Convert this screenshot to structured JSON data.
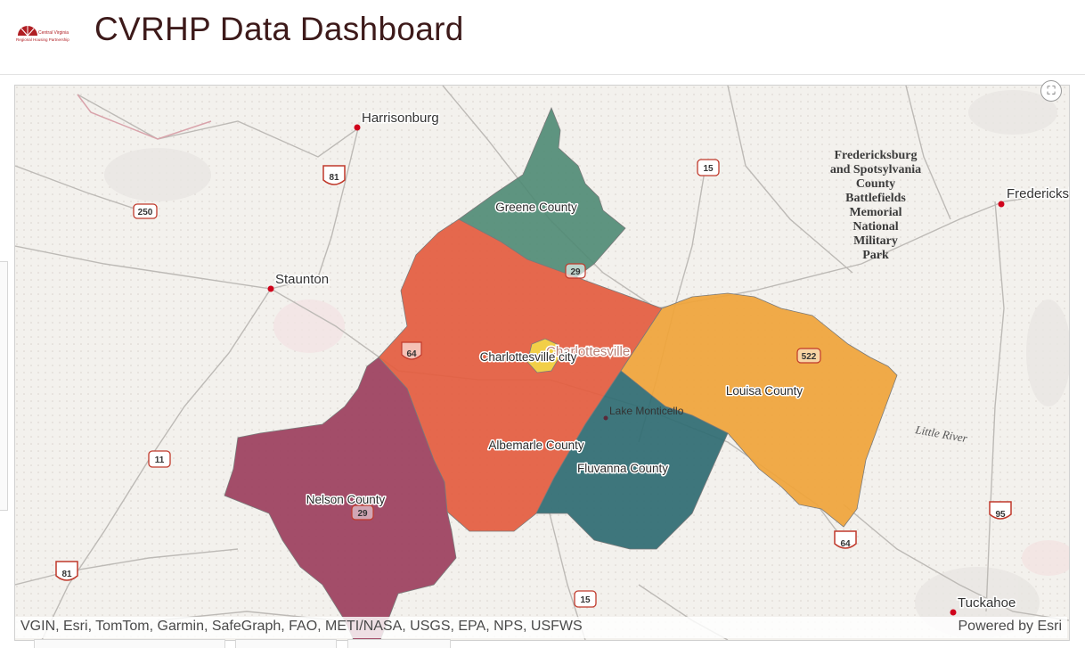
{
  "header": {
    "title": "CVRHP Data Dashboard",
    "logo_line1": "Central Virginia",
    "logo_line2": "Regional Housing Partnership"
  },
  "map": {
    "counties": [
      {
        "name": "Greene County",
        "color": "#4e8a73"
      },
      {
        "name": "Albemarle County",
        "color": "#e45c3f"
      },
      {
        "name": "Charlottesville city",
        "color": "#f2cf48"
      },
      {
        "name": "Louisa County",
        "color": "#f0a43a"
      },
      {
        "name": "Fluvanna County",
        "color": "#2f6b72"
      },
      {
        "name": "Nelson County",
        "color": "#9c3f5d"
      }
    ],
    "places": {
      "harrisonburg": "Harrisonburg",
      "staunton": "Staunton",
      "fredericksburg": "Fredericksbu",
      "tuckahoe": "Tuckahoe",
      "charlottesville": "Charlottesville",
      "lake_monticello": "Lake Monticello"
    },
    "park_lines": [
      "Fredericksburg",
      "and Spotsylvania",
      "County",
      "Battlefields",
      "Memorial",
      "National",
      "Military",
      "Park"
    ],
    "river": "Little River",
    "shields": {
      "i81_north": "81",
      "us250": "250",
      "us15_north": "15",
      "us29_north": "29",
      "i64_west": "64",
      "us522": "522",
      "us11": "11",
      "us29_south": "29",
      "i81_south": "81",
      "us15_south": "15",
      "i64_east": "64",
      "i95": "95"
    },
    "expand_icon": "expand-icon"
  },
  "attribution": {
    "sources": "VGIN, Esri, TomTom, Garmin, SafeGraph, FAO, METI/NASA, USGS, EPA, NPS, USFWS",
    "powered_by": "Powered by Esri"
  }
}
